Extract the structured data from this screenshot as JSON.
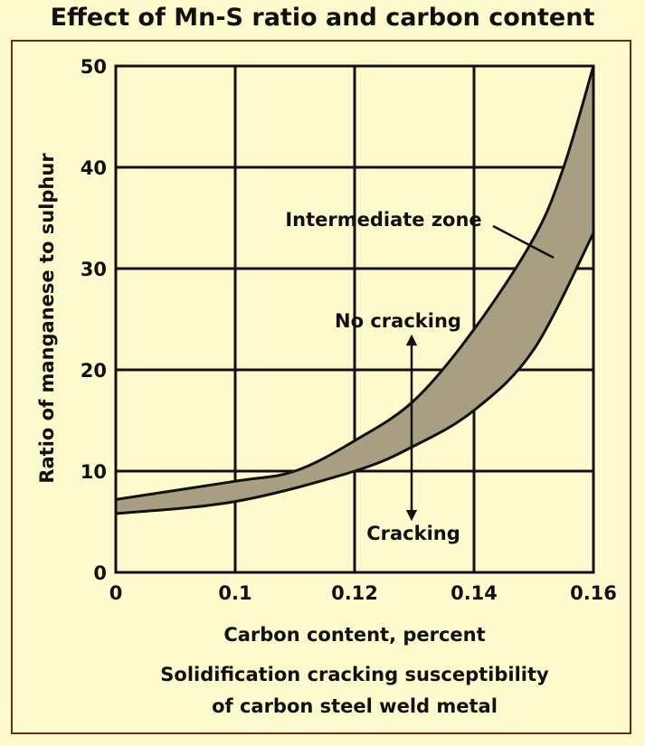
{
  "chart_data": {
    "type": "area",
    "title": "Effect of Mn-S ratio and carbon content",
    "xlabel": "Carbon content, percent",
    "ylabel": "Ratio of manganese to sulphur",
    "caption": [
      "Solidification cracking susceptibility",
      "of carbon steel weld metal"
    ],
    "x_ticks": [
      "0",
      "0.1",
      "0.12",
      "0.14",
      "0.16"
    ],
    "y_ticks": [
      "0",
      "10",
      "20",
      "30",
      "40",
      "50"
    ],
    "ylim": [
      0,
      50
    ],
    "grid": true,
    "band_color": "#a89f82",
    "upper_boundary": [
      {
        "x": 0,
        "y": 7.2
      },
      {
        "x": 0.1,
        "y": 9.0
      },
      {
        "x": 0.11,
        "y": 10.0
      },
      {
        "x": 0.12,
        "y": 13.0
      },
      {
        "x": 0.13,
        "y": 17.0
      },
      {
        "x": 0.14,
        "y": 24.0
      },
      {
        "x": 0.15,
        "y": 33.0
      },
      {
        "x": 0.155,
        "y": 40.0
      },
      {
        "x": 0.16,
        "y": 50.0
      }
    ],
    "lower_boundary": [
      {
        "x": 0,
        "y": 5.8
      },
      {
        "x": 0.1,
        "y": 7.0
      },
      {
        "x": 0.12,
        "y": 10.0
      },
      {
        "x": 0.13,
        "y": 12.5
      },
      {
        "x": 0.14,
        "y": 16.0
      },
      {
        "x": 0.15,
        "y": 22.0
      },
      {
        "x": 0.16,
        "y": 33.5
      }
    ],
    "annotations": {
      "intermediate": "Intermediate zone",
      "no_cracking": "No cracking",
      "cracking": "Cracking"
    }
  }
}
